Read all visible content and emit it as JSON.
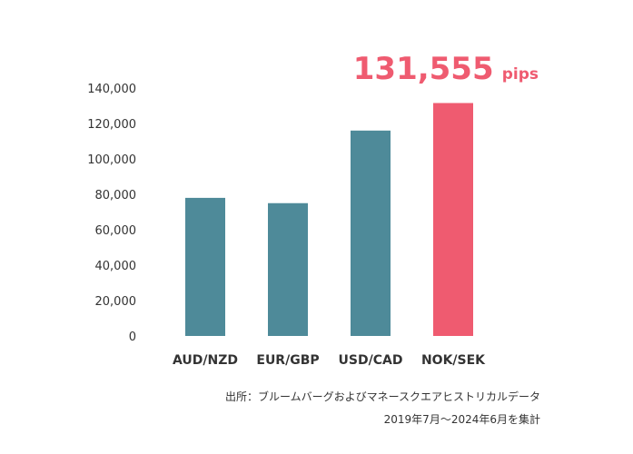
{
  "chart_data": {
    "type": "bar",
    "categories": [
      "AUD/NZD",
      "EUR/GBP",
      "USD/CAD",
      "NOK/SEK"
    ],
    "values": [
      78000,
      75000,
      116000,
      131555
    ],
    "ylim": [
      0,
      140000
    ],
    "yticks": [
      "0",
      "20,000",
      "40,000",
      "60,000",
      "80,000",
      "100,000",
      "120,000",
      "140,000"
    ],
    "ytick_values": [
      0,
      20000,
      40000,
      60000,
      80000,
      100000,
      120000,
      140000
    ],
    "highlight_index": 3,
    "highlight_value_text": "131,555",
    "highlight_unit": "pips",
    "grid": false,
    "colors": {
      "bar": "#4e8a99",
      "highlight": "#ef5b70",
      "text": "#333333"
    }
  },
  "source": {
    "line1": "出所：ブルームバーグおよびマネースクエアヒストリカルデータ",
    "line2": "2019年7月～2024年6月を集計"
  }
}
